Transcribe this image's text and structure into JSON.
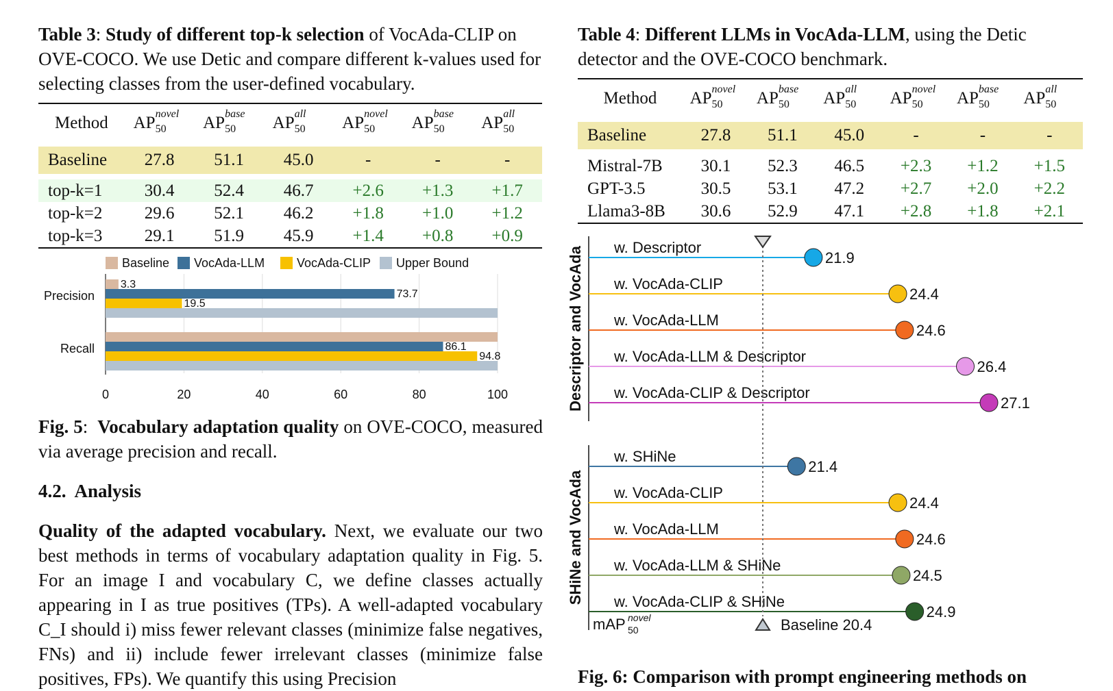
{
  "table3": {
    "caption_label": "Table 3",
    "caption_bold": "Study of different top-k selection",
    "caption_rest": " of VocAda-CLIP on OVE-COCO. We use Detic and compare different k-values used for selecting classes from the user-defined vocabulary.",
    "headers": [
      "Method",
      "AP",
      "AP",
      "AP",
      "AP",
      "AP",
      "AP"
    ],
    "header_sups": [
      "",
      "novel",
      "base",
      "all",
      "novel",
      "base",
      "all"
    ],
    "header_sub": "50",
    "baseline": [
      "Baseline",
      "27.8",
      "51.1",
      "45.0",
      "-",
      "-",
      "-"
    ],
    "rows": [
      [
        "top-k=1",
        "30.4",
        "52.4",
        "46.7",
        "+2.6",
        "+1.3",
        "+1.7"
      ],
      [
        "top-k=2",
        "29.6",
        "52.1",
        "46.2",
        "+1.8",
        "+1.0",
        "+1.2"
      ],
      [
        "top-k=3",
        "29.1",
        "51.9",
        "45.9",
        "+1.4",
        "+0.8",
        "+0.9"
      ]
    ]
  },
  "table4": {
    "caption_label": "Table 4",
    "caption_bold": "Different LLMs in VocAda-LLM",
    "caption_rest": ", using the Detic detector and the OVE-COCO benchmark.",
    "headers": [
      "Method",
      "AP",
      "AP",
      "AP",
      "AP",
      "AP",
      "AP"
    ],
    "header_sups": [
      "",
      "novel",
      "base",
      "all",
      "novel",
      "base",
      "all"
    ],
    "header_sub": "50",
    "baseline": [
      "Baseline",
      "27.8",
      "51.1",
      "45.0",
      "-",
      "-",
      "-"
    ],
    "rows": [
      [
        "Mistral-7B",
        "30.1",
        "52.3",
        "46.5",
        "+2.3",
        "+1.2",
        "+1.5"
      ],
      [
        "GPT-3.5",
        "30.5",
        "53.1",
        "47.2",
        "+2.7",
        "+2.0",
        "+2.2"
      ],
      [
        "Llama3-8B",
        "30.6",
        "52.9",
        "47.1",
        "+2.8",
        "+1.8",
        "+2.1"
      ]
    ]
  },
  "chart_data": [
    {
      "type": "bar",
      "orientation": "horizontal",
      "categories": [
        "Precision",
        "Recall"
      ],
      "series": [
        {
          "name": "Baseline",
          "color": "#d9b8a0",
          "values": [
            3.3,
            100
          ]
        },
        {
          "name": "VocAda-LLM",
          "color": "#3d7199",
          "values": [
            73.7,
            86.1
          ]
        },
        {
          "name": "VocAda-CLIP",
          "color": "#f7c100",
          "values": [
            19.5,
            94.8
          ]
        },
        {
          "name": "Upper Bound",
          "color": "#b3c2d0",
          "values": [
            100,
            100
          ]
        }
      ],
      "data_labels": {
        "Precision": [
          "3.3",
          "73.7",
          "19.5",
          ""
        ],
        "Recall": [
          "",
          "86.1",
          "94.8",
          ""
        ]
      },
      "xlim": [
        0,
        100
      ],
      "xticks": [
        "0",
        "20",
        "40",
        "60",
        "80",
        "100"
      ],
      "grid": true,
      "legend": "top"
    },
    {
      "type": "lollipop",
      "baseline": 20.4,
      "baseline_label": "Baseline 20.4",
      "xlabel": "mAP",
      "xlabel_sup": "novel",
      "xlabel_sub": "50",
      "groups": [
        {
          "name": "Descriptor and VocAda",
          "items": [
            {
              "label": "w. Descriptor",
              "value": 21.9,
              "color": "#16a8e6"
            },
            {
              "label": "w. VocAda-CLIP",
              "value": 24.4,
              "color": "#f7c010"
            },
            {
              "label": "w. VocAda-LLM",
              "value": 24.6,
              "color": "#f06a21"
            },
            {
              "label": "w. VocAda-LLM & Descriptor",
              "value": 26.4,
              "color": "#e699e8"
            },
            {
              "label": "w. VocAda-CLIP & Descriptor",
              "value": 27.1,
              "color": "#c43bb8"
            }
          ]
        },
        {
          "name": "SHiNe and VocAda",
          "items": [
            {
              "label": "w. SHiNe",
              "value": 21.4,
              "color": "#3e76a3"
            },
            {
              "label": "w. VocAda-CLIP",
              "value": 24.4,
              "color": "#f7c010"
            },
            {
              "label": "w. VocAda-LLM",
              "value": 24.6,
              "color": "#f06a21"
            },
            {
              "label": "w. VocAda-LLM & SHiNe",
              "value": 24.5,
              "color": "#8fa866"
            },
            {
              "label": "w. VocAda-CLIP & SHiNe",
              "value": 24.9,
              "color": "#2a5e2a"
            }
          ]
        }
      ]
    }
  ],
  "fig5_caption": {
    "label": "Fig. 5",
    "bold": "Vocabulary adaptation quality",
    "rest": " on OVE-COCO, measured via average precision and recall."
  },
  "section": "4.2.  Analysis",
  "paragraph": {
    "bold": "Quality of the adapted vocabulary.",
    "text": " Next, we evaluate our two best methods in terms of vocabulary adaptation quality in Fig. 5. For an image I and vocabulary C, we define classes actually appearing in I as true positives (TPs). A well-adapted vocabulary C_I should i) miss fewer relevant classes (minimize false negatives, FNs) and ii) include fewer irrelevant classes (minimize false positives, FPs). We quantify this using Precision"
  },
  "fig6_caption": "Fig. 6: Comparison with prompt engineering methods on"
}
